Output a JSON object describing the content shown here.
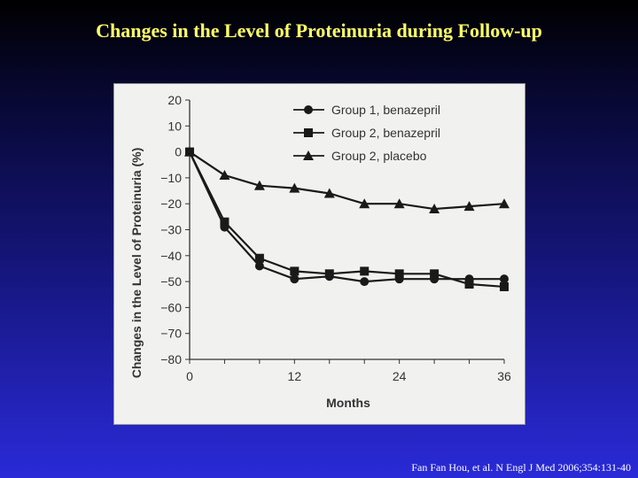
{
  "slide": {
    "title": "Changes in the Level of Proteinuria during Follow-up",
    "citation": "Fan Fan Hou, et al. N Engl J Med 2006;354:131-40"
  },
  "colors": {
    "title": "#ffff66",
    "panel_background": "#f1f1f0",
    "series": "#1a1a1a",
    "axis_text": "#333333"
  },
  "chart_data": {
    "type": "line",
    "xlabel": "Months",
    "ylabel": "Changes in the Level of Proteinuria (%)",
    "xlim": [
      0,
      36
    ],
    "ylim": [
      -80,
      20
    ],
    "x_ticks": [
      0,
      12,
      24,
      36
    ],
    "x_minor_ticks": [
      4,
      8,
      16,
      20,
      28,
      32
    ],
    "y_ticks": [
      20,
      10,
      0,
      -10,
      -20,
      -30,
      -40,
      -50,
      -60,
      -70,
      -80
    ],
    "grid": false,
    "legend_position": "top-right",
    "x": [
      0,
      4,
      8,
      12,
      16,
      20,
      24,
      28,
      32,
      36
    ],
    "series": [
      {
        "name": "Group 1, benazepril",
        "marker": "circle",
        "values": [
          0,
          -29,
          -44,
          -49,
          -48,
          -50,
          -49,
          -49,
          -49,
          -49
        ]
      },
      {
        "name": "Group 2, benazepril",
        "marker": "square",
        "values": [
          0,
          -27,
          -41,
          -46,
          -47,
          -46,
          -47,
          -47,
          -51,
          -52
        ]
      },
      {
        "name": "Group 2, placebo",
        "marker": "triangle",
        "values": [
          0,
          -9,
          -13,
          -14,
          -16,
          -20,
          -20,
          -22,
          -21,
          -20
        ]
      }
    ]
  }
}
